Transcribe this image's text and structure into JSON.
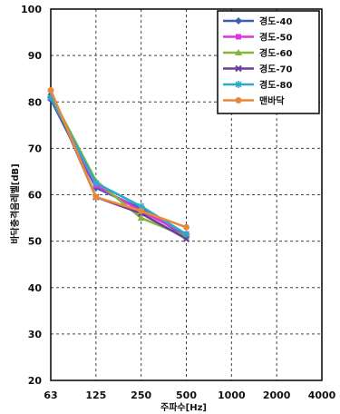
{
  "chart_data": {
    "type": "line",
    "title": "",
    "xlabel": "주파수[Hz]",
    "ylabel": "바닥충격음레벨[dB]",
    "categories": [
      "63",
      "125",
      "250",
      "500",
      "1000",
      "2000",
      "4000"
    ],
    "ylim": [
      20,
      100
    ],
    "yticks": [
      20,
      30,
      40,
      50,
      60,
      70,
      80,
      90,
      100
    ],
    "grid": true,
    "legend_position": "top-right",
    "series": [
      {
        "name": "경도-40",
        "color": "#3a5fb0",
        "marker": "diamond",
        "values": [
          80.5,
          61.5,
          57.0,
          51.0,
          null,
          null,
          null
        ]
      },
      {
        "name": "경도-50",
        "color": "#e033e0",
        "marker": "square",
        "values": [
          81.0,
          62.0,
          56.5,
          51.5,
          null,
          null,
          null
        ]
      },
      {
        "name": "경도-60",
        "color": "#86b43c",
        "marker": "triangle",
        "values": [
          81.5,
          63.0,
          55.0,
          51.0,
          null,
          null,
          null
        ]
      },
      {
        "name": "경도-70",
        "color": "#6a3c9e",
        "marker": "x",
        "values": [
          82.0,
          59.5,
          56.0,
          50.5,
          null,
          null,
          null
        ]
      },
      {
        "name": "경도-80",
        "color": "#2ea8c8",
        "marker": "star",
        "values": [
          81.0,
          62.5,
          57.5,
          51.5,
          null,
          null,
          null
        ]
      },
      {
        "name": "맨바닥",
        "color": "#e8893a",
        "marker": "circle",
        "values": [
          82.5,
          59.5,
          56.5,
          53.0,
          null,
          null,
          null
        ]
      }
    ]
  }
}
